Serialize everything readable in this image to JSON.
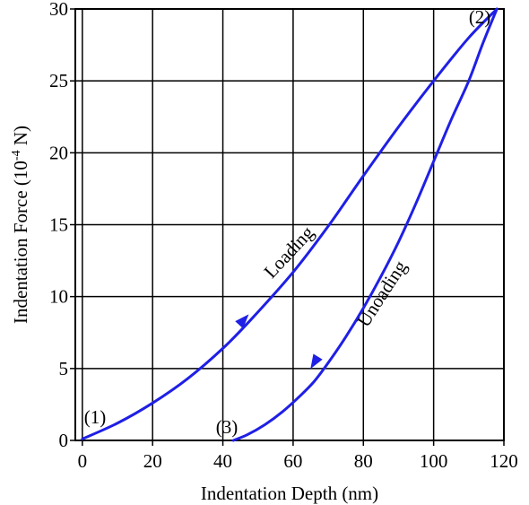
{
  "chart_data": {
    "type": "line",
    "title": "",
    "xlabel": "Indentation Depth (nm)",
    "ylabel_main": "Indentation Force (10",
    "ylabel_exp": "-4",
    "ylabel_end": " N)",
    "xlim": [
      -2,
      120
    ],
    "ylim": [
      0,
      30
    ],
    "x_ticks": [
      0,
      20,
      40,
      60,
      80,
      100,
      120
    ],
    "y_ticks": [
      0,
      5,
      10,
      15,
      20,
      25,
      30
    ],
    "grid": true,
    "line_color": "#1f1fe6",
    "series": [
      {
        "key": "loading",
        "x": [
          0,
          10,
          20,
          30,
          40,
          48,
          60,
          70,
          80,
          90,
          100,
          110,
          118
        ],
        "y": [
          0.1,
          1.2,
          2.6,
          4.3,
          6.4,
          8.4,
          11.7,
          14.9,
          18.4,
          21.8,
          25.0,
          28.0,
          30.0
        ]
      },
      {
        "key": "unloading",
        "x": [
          118,
          114,
          110,
          105,
          100,
          95,
          90,
          85,
          80,
          75,
          70,
          66,
          62,
          57,
          52,
          47,
          43
        ],
        "y": [
          30.0,
          27.6,
          25.0,
          22.3,
          19.4,
          16.5,
          13.8,
          11.4,
          9.2,
          7.2,
          5.4,
          4.1,
          3.1,
          2.0,
          1.1,
          0.4,
          0.0
        ]
      }
    ],
    "arrows": [
      {
        "key": "loading-arrow",
        "x": 46,
        "y": 8.4,
        "toward": {
          "x": 49,
          "y": 9.2
        }
      },
      {
        "key": "unloading-arrow",
        "x": 66,
        "y": 5.4,
        "toward": {
          "x": 64.5,
          "y": 4.8
        }
      }
    ],
    "annotations": [
      {
        "key": "point-1",
        "text": "(1)",
        "x": 0.5,
        "y": 1.2
      },
      {
        "key": "point-2",
        "text": "(2)",
        "x": 110,
        "y": 29.0
      },
      {
        "key": "point-3",
        "text": "(3)",
        "x": 38,
        "y": 0.5
      }
    ],
    "curve_labels": [
      {
        "key": "loading-label",
        "text": "Loading",
        "x": 54,
        "y": 11.2,
        "angle": -47
      },
      {
        "key": "unloading-label",
        "text": "Unoading",
        "x": 81,
        "y": 7.8,
        "angle": -57
      }
    ]
  }
}
